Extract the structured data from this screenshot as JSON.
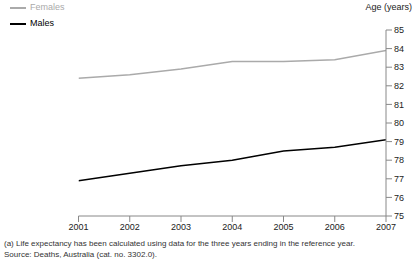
{
  "chart_data": {
    "type": "line",
    "y_label": "Age (years)",
    "x": [
      2001,
      2002,
      2003,
      2004,
      2005,
      2006,
      2007
    ],
    "xlim": [
      2001,
      2007
    ],
    "xticks": [
      2001,
      2002,
      2003,
      2004,
      2005,
      2006,
      2007
    ],
    "ylim": [
      75,
      85
    ],
    "yticks": [
      75,
      76,
      77,
      78,
      79,
      80,
      81,
      82,
      83,
      84,
      85
    ],
    "grid": false,
    "legend": "upper left",
    "series": [
      {
        "name": "Males",
        "color": "#000000",
        "values": [
          76.9,
          77.3,
          77.7,
          78.0,
          78.5,
          78.7,
          79.1
        ]
      },
      {
        "name": "Females",
        "color": "#aaaaaa",
        "values": [
          82.4,
          82.6,
          82.9,
          83.3,
          83.3,
          83.4,
          83.9
        ]
      }
    ],
    "annotations": [
      "(a) Life expectancy has been calculated using data for the three years ending in the reference year.",
      "Source: Deaths, Australia (cat. no. 3302.0)."
    ]
  }
}
